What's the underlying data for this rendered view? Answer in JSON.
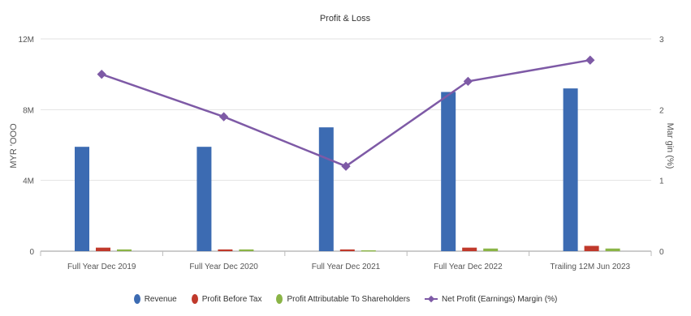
{
  "chart_data": {
    "type": "bar",
    "title": "Profit & Loss",
    "ylabel": "MYR 'OOO",
    "y2label": "Mar gin (%)",
    "categories": [
      "Full Year Dec 2019",
      "Full Year Dec 2020",
      "Full Year Dec 2021",
      "Full Year Dec 2022",
      "Trailing 12M Jun 2023"
    ],
    "ylim": [
      0,
      12
    ],
    "y2lim": [
      0,
      3
    ],
    "y_ticks": [
      "0",
      "4M",
      "8M",
      "12M"
    ],
    "y2_ticks": [
      "0",
      "1",
      "2",
      "3"
    ],
    "series": [
      {
        "name": "Revenue",
        "axis": "left",
        "kind": "bar",
        "color": "#3c6bb2",
        "values": [
          5.9,
          5.9,
          7.0,
          9.0,
          9.2
        ]
      },
      {
        "name": "Profit Before Tax",
        "axis": "left",
        "kind": "bar",
        "color": "#c0392b",
        "values": [
          0.2,
          0.1,
          0.1,
          0.2,
          0.3
        ]
      },
      {
        "name": "Profit Attributable To Shareholders",
        "axis": "left",
        "kind": "bar",
        "color": "#8ab446",
        "values": [
          0.1,
          0.1,
          0.05,
          0.15,
          0.15
        ]
      },
      {
        "name": "Net Profit (Earnings) Margin (%)",
        "axis": "right",
        "kind": "line",
        "color": "#7e5aa6",
        "values": [
          2.5,
          1.9,
          1.2,
          2.4,
          2.7
        ]
      }
    ],
    "grid": true,
    "legend": "bottom"
  }
}
